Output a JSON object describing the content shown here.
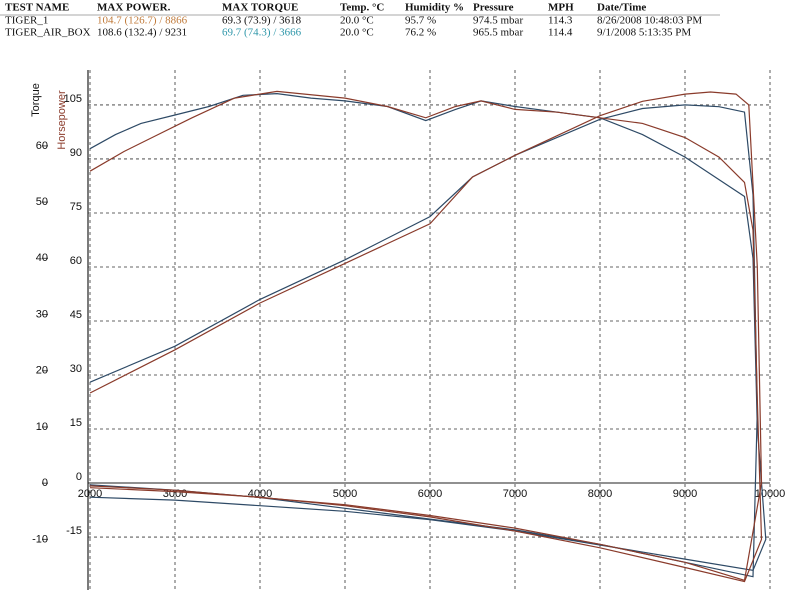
{
  "table": {
    "columns": [
      "TEST NAME",
      "MAX POWER.",
      "MAX TORQUE",
      "Temp. °C",
      "Humidity %",
      "Pressure",
      "MPH",
      "Date/Time"
    ],
    "rows": [
      [
        "TIGER_1",
        "104.7 (126.7) / 8866",
        "69.3 (73.9) / 3618",
        "20.0 °C",
        "95.7 %",
        "974.5 mbar",
        "114.3",
        "8/26/2008 10:48:03 PM"
      ],
      [
        "TIGER_AIR_BOX",
        "108.6 (132.4) / 9231",
        "69.7 (74.3) / 3666",
        "20.0 °C",
        "76.2 %",
        "965.5 mbar",
        "114.4",
        "9/1/2008 5:13:35 PM"
      ]
    ],
    "highlights": [
      {
        "row": 0,
        "col": 1,
        "color": "#c07a3a"
      },
      {
        "row": 1,
        "col": 2,
        "color": "#2f97aa"
      }
    ]
  },
  "chart_data": {
    "type": "line",
    "ylabel": "Torque",
    "y2label": "Horsepower",
    "xlim": [
      2000,
      10000
    ],
    "xticks": [
      2000,
      3000,
      4000,
      5000,
      6000,
      7000,
      8000,
      9000,
      10000
    ],
    "ylim": [
      -19,
      73.5
    ],
    "yticks": [
      -10,
      0,
      10,
      20,
      30,
      40,
      50,
      60
    ],
    "y2lim": [
      -29.7,
      114.7
    ],
    "y2ticks": [
      -15,
      0,
      15,
      30,
      45,
      60,
      75,
      90,
      105
    ],
    "grid": true,
    "series": [
      {
        "color": "#2e4a66",
        "axis": "y",
        "x": [
          2000,
          2300,
          2600,
          3000,
          3400,
          3800,
          4200,
          4600,
          5000,
          5500,
          5950,
          6300,
          6600,
          7000,
          7500,
          8000,
          8500,
          9000,
          9400,
          9700,
          9800,
          9850,
          9950,
          9800,
          9000,
          8000,
          7000,
          6000,
          5000,
          4000,
          3000,
          2000
        ],
        "values": [
          59.5,
          62,
          64,
          65.5,
          67,
          69,
          69.3,
          68.5,
          68,
          67,
          64.5,
          66.5,
          68,
          67,
          66,
          65,
          62,
          58,
          54,
          51,
          40,
          10,
          -10,
          -15.5,
          -13.5,
          -11,
          -8.5,
          -6.5,
          -5,
          -4,
          -3,
          -2.5
        ]
      },
      {
        "color": "#2e4a66",
        "axis": "y2",
        "x": [
          2000,
          3000,
          4000,
          5000,
          6000,
          6500,
          7000,
          8000,
          8500,
          9000,
          9400,
          9700,
          9800,
          9850,
          9800,
          9000,
          8000,
          7000,
          6000,
          5000,
          4000,
          3000,
          2000
        ],
        "values": [
          28,
          38,
          51,
          62,
          74,
          85,
          91,
          101,
          104,
          105,
          104.5,
          103,
          80,
          20,
          -26,
          -22,
          -17,
          -13,
          -10,
          -7,
          -4,
          -2,
          -0.5
        ]
      },
      {
        "color": "#8a3b2b",
        "axis": "y",
        "x": [
          2000,
          2400,
          2800,
          3200,
          3700,
          4200,
          5000,
          5500,
          5950,
          6300,
          6600,
          7000,
          7500,
          8000,
          8500,
          9000,
          9400,
          9700,
          9800,
          9850,
          9900,
          9700,
          9000,
          8000,
          7000,
          6000,
          5000,
          4000,
          3000,
          2000
        ],
        "values": [
          55.5,
          59,
          62,
          65,
          68.5,
          69.7,
          68.5,
          67,
          65,
          67,
          68,
          66.5,
          66,
          65,
          64,
          61.5,
          58,
          53.5,
          45,
          15,
          -10,
          -17.5,
          -15,
          -11.5,
          -8.5,
          -6,
          -4,
          -2.5,
          -1.5,
          -0.8
        ]
      },
      {
        "color": "#8a3b2b",
        "axis": "y2",
        "x": [
          2000,
          3000,
          4000,
          5000,
          6000,
          6500,
          7000,
          8000,
          8500,
          9000,
          9300,
          9600,
          9750,
          9850,
          9900,
          9700,
          9000,
          8000,
          7000,
          6000,
          5000,
          4000,
          3000,
          2000
        ],
        "values": [
          25,
          37,
          50,
          61,
          72,
          85,
          91,
          102,
          106,
          108,
          108.6,
          108,
          105,
          60,
          0,
          -27,
          -22,
          -17,
          -12.5,
          -9,
          -6,
          -4,
          -2,
          -0.8
        ]
      }
    ]
  }
}
